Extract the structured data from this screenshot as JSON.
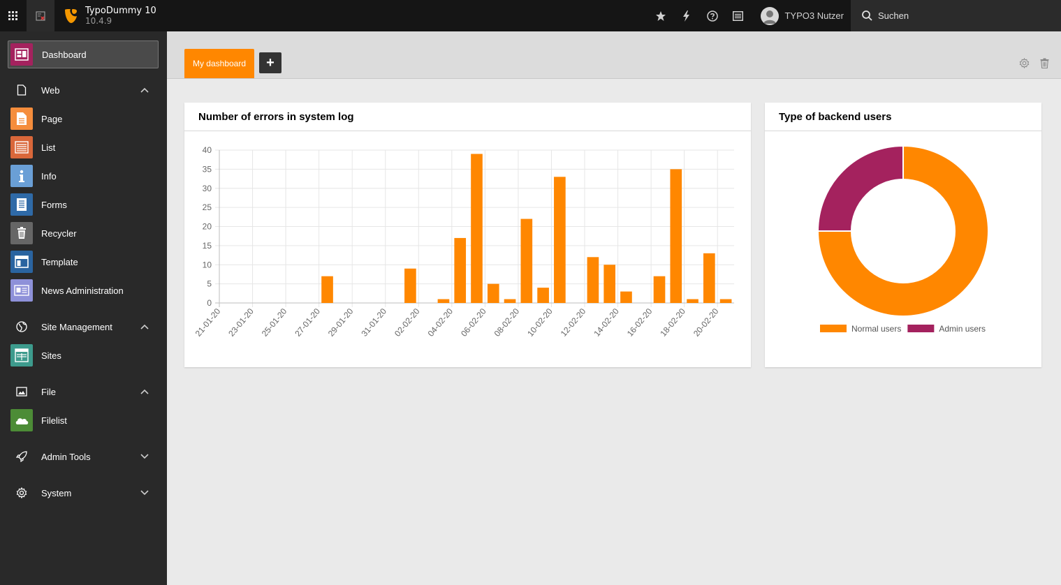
{
  "topbar": {
    "site_name": "TypoDummy 10",
    "version": "10.4.9",
    "user_name": "TYPO3 Nutzer",
    "search_placeholder": "Suchen"
  },
  "sidebar": {
    "dashboard_label": "Dashboard",
    "groups": [
      {
        "label": "Web",
        "icon": "page-outline-icon",
        "expanded": true
      },
      {
        "label": "Site Management",
        "icon": "globe-icon",
        "expanded": true
      },
      {
        "label": "File",
        "icon": "image-icon",
        "expanded": true
      },
      {
        "label": "Admin Tools",
        "icon": "rocket-icon",
        "expanded": false
      },
      {
        "label": "System",
        "icon": "gear-icon",
        "expanded": false
      }
    ],
    "modules": {
      "web": [
        {
          "label": "Page",
          "color": "#f58d3c",
          "icon": "page-module-icon"
        },
        {
          "label": "List",
          "color": "#d9673a",
          "icon": "list-module-icon"
        },
        {
          "label": "Info",
          "color": "#6a9fd6",
          "icon": "info-module-icon"
        },
        {
          "label": "Forms",
          "color": "#2f6aa7",
          "icon": "forms-module-icon"
        },
        {
          "label": "Recycler",
          "color": "#666666",
          "icon": "recycler-module-icon"
        },
        {
          "label": "Template",
          "color": "#2a64a0",
          "icon": "template-module-icon"
        },
        {
          "label": "News Administration",
          "color": "#8e91d9",
          "icon": "news-module-icon"
        }
      ],
      "site": [
        {
          "label": "Sites",
          "color": "#3d9b8d",
          "icon": "sites-module-icon"
        }
      ],
      "file": [
        {
          "label": "Filelist",
          "color": "#4c8c36",
          "icon": "filelist-module-icon"
        }
      ]
    }
  },
  "dashboard": {
    "tab_label": "My dashboard",
    "add_label": "+",
    "accent": "#ff8700"
  },
  "widgets": {
    "errors_title": "Number of errors in system log",
    "users_title": "Type of backend users"
  },
  "chart_data": [
    {
      "type": "bar",
      "title": "Number of errors in system log",
      "categories": [
        "21-01-20",
        "22-01-20",
        "23-01-20",
        "24-01-20",
        "25-01-20",
        "26-01-20",
        "27-01-20",
        "28-01-20",
        "29-01-20",
        "30-01-20",
        "31-01-20",
        "01-02-20",
        "02-02-20",
        "03-02-20",
        "04-02-20",
        "05-02-20",
        "06-02-20",
        "07-02-20",
        "08-02-20",
        "09-02-20",
        "10-02-20",
        "11-02-20",
        "12-02-20",
        "13-02-20",
        "14-02-20",
        "15-02-20",
        "16-02-20",
        "17-02-20",
        "18-02-20",
        "19-02-20",
        "20-02-20"
      ],
      "tick_labels": [
        "21-01-20",
        "23-01-20",
        "25-01-20",
        "27-01-20",
        "29-01-20",
        "31-01-20",
        "02-02-20",
        "04-02-20",
        "06-02-20",
        "08-02-20",
        "10-02-20",
        "12-02-20",
        "14-02-20",
        "16-02-20",
        "18-02-20",
        "20-02-20"
      ],
      "values": [
        0,
        0,
        0,
        0,
        0,
        0,
        7,
        0,
        0,
        0,
        0,
        9,
        0,
        1,
        17,
        39,
        5,
        1,
        22,
        4,
        33,
        0,
        12,
        10,
        3,
        0,
        7,
        35,
        1,
        13,
        1
      ],
      "ylim": [
        0,
        40
      ],
      "yticks": [
        0,
        5,
        10,
        15,
        20,
        25,
        30,
        35,
        40
      ],
      "color": "#ff8700",
      "grid": true
    },
    {
      "type": "pie",
      "title": "Type of backend users",
      "labels": [
        "Normal users",
        "Admin users"
      ],
      "values": [
        3,
        1
      ],
      "colors": [
        "#ff8700",
        "#a4225e"
      ],
      "legend": "bottom",
      "donut": true
    }
  ]
}
